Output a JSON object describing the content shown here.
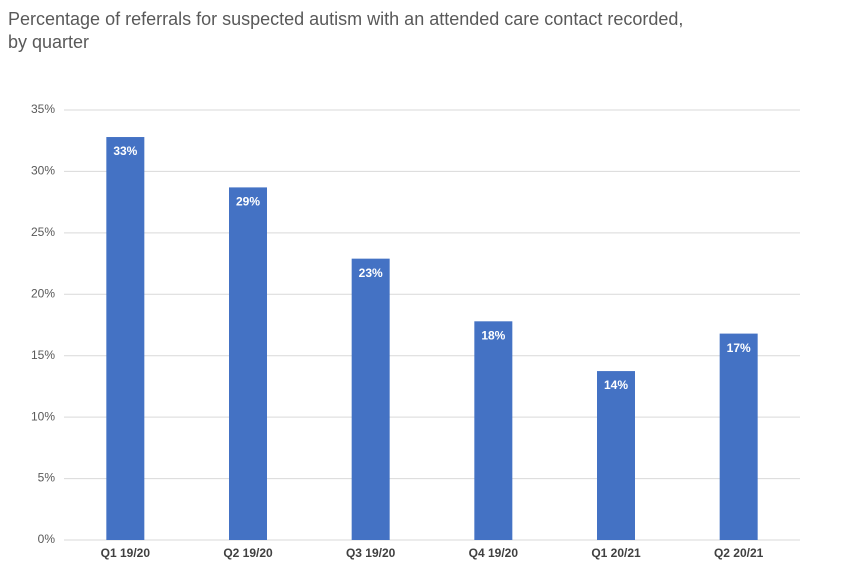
{
  "chart_data": {
    "type": "bar",
    "title": [
      "Percentage of referrals for suspected autism with an attended care contact recorded,",
      "by quarter"
    ],
    "categories": [
      "Q1 19/20",
      "Q2 19/20",
      "Q3 19/20",
      "Q4 19/20",
      "Q1 20/21",
      "Q2 20/21"
    ],
    "values": [
      32.8,
      28.7,
      22.9,
      17.8,
      13.75,
      16.8
    ],
    "value_labels": [
      "33%",
      "29%",
      "23%",
      "18%",
      "14%",
      "17%"
    ],
    "color": "#4472c4",
    "ylim": [
      0,
      35
    ],
    "yticks": [
      {
        "value": 0,
        "label": "0%"
      },
      {
        "value": 5,
        "label": "5%"
      },
      {
        "value": 10,
        "label": "10%"
      },
      {
        "value": 15,
        "label": "15%"
      },
      {
        "value": 20,
        "label": "20%"
      },
      {
        "value": 25,
        "label": "25%"
      },
      {
        "value": 30,
        "label": "30%"
      },
      {
        "value": 35,
        "label": "35%"
      }
    ],
    "grid": true
  }
}
